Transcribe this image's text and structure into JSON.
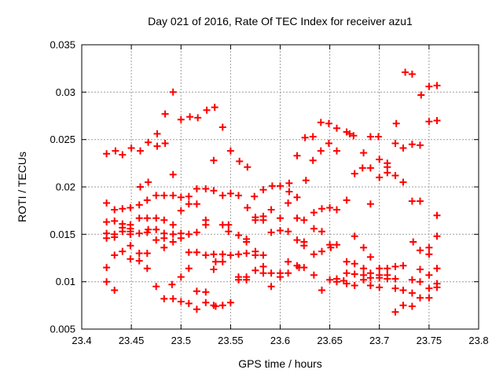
{
  "chart_data": {
    "type": "scatter",
    "title": "Day 021 of 2016, Rate Of TEC Index for receiver azu1",
    "xlabel": "GPS time / hours",
    "ylabel": "ROTI / TECUs",
    "xlim": [
      23.4,
      23.8
    ],
    "ylim": [
      0.005,
      0.035
    ],
    "xticks": [
      23.4,
      23.45,
      23.5,
      23.55,
      23.6,
      23.65,
      23.7,
      23.75,
      23.8
    ],
    "xtick_labels": [
      "23.4",
      "23.45",
      "23.5",
      "23.55",
      "23.6",
      "23.65",
      "23.7",
      "23.75",
      "23.8"
    ],
    "yticks": [
      0.005,
      0.01,
      0.015,
      0.02,
      0.025,
      0.03,
      0.035
    ],
    "ytick_labels": [
      "0.005",
      "0.01",
      "0.015",
      "0.02",
      "0.025",
      "0.03",
      "0.035"
    ],
    "grid": true,
    "legend": "none",
    "marker": "plus",
    "marker_color": "#ff0000",
    "grid_color": "#9e9e9e",
    "frame_color": "#000000",
    "series": [
      {
        "name": "ROTI",
        "points": [
          [
            23.425,
            0.0235
          ],
          [
            23.434,
            0.0238
          ],
          [
            23.441,
            0.0234
          ],
          [
            23.45,
            0.0241
          ],
          [
            23.459,
            0.0238
          ],
          [
            23.467,
            0.0247
          ],
          [
            23.476,
            0.0243
          ],
          [
            23.484,
            0.0246
          ],
          [
            23.476,
            0.0256
          ],
          [
            23.492,
            0.03
          ],
          [
            23.492,
            0.0213
          ],
          [
            23.484,
            0.0277
          ],
          [
            23.5,
            0.0271
          ],
          [
            23.509,
            0.0274
          ],
          [
            23.517,
            0.0273
          ],
          [
            23.526,
            0.0281
          ],
          [
            23.534,
            0.0284
          ],
          [
            23.533,
            0.0228
          ],
          [
            23.467,
            0.0205
          ],
          [
            23.459,
            0.02
          ],
          [
            23.516,
            0.0198
          ],
          [
            23.525,
            0.0198
          ],
          [
            23.533,
            0.0196
          ],
          [
            23.475,
            0.0191
          ],
          [
            23.483,
            0.0191
          ],
          [
            23.492,
            0.0191
          ],
          [
            23.5,
            0.0189
          ],
          [
            23.508,
            0.019
          ],
          [
            23.425,
            0.0183
          ],
          [
            23.458,
            0.0181
          ],
          [
            23.466,
            0.0186
          ],
          [
            23.508,
            0.0182
          ],
          [
            23.516,
            0.0182
          ],
          [
            23.433,
            0.0176
          ],
          [
            23.441,
            0.0177
          ],
          [
            23.449,
            0.0178
          ],
          [
            23.5,
            0.0175
          ],
          [
            23.458,
            0.0167
          ],
          [
            23.466,
            0.0167
          ],
          [
            23.475,
            0.0167
          ],
          [
            23.483,
            0.0165
          ],
          [
            23.525,
            0.0165
          ],
          [
            23.425,
            0.0163
          ],
          [
            23.433,
            0.0164
          ],
          [
            23.441,
            0.0161
          ],
          [
            23.449,
            0.016
          ],
          [
            23.492,
            0.016
          ],
          [
            23.525,
            0.016
          ],
          [
            23.441,
            0.0157
          ],
          [
            23.449,
            0.0156
          ],
          [
            23.467,
            0.0155
          ],
          [
            23.475,
            0.0155
          ],
          [
            23.441,
            0.0153
          ],
          [
            23.449,
            0.0153
          ],
          [
            23.425,
            0.0151
          ],
          [
            23.433,
            0.015
          ],
          [
            23.449,
            0.015
          ],
          [
            23.458,
            0.0151
          ],
          [
            23.466,
            0.0152
          ],
          [
            23.483,
            0.0151
          ],
          [
            23.492,
            0.015
          ],
          [
            23.5,
            0.0151
          ],
          [
            23.508,
            0.015
          ],
          [
            23.516,
            0.0152
          ],
          [
            23.425,
            0.0146
          ],
          [
            23.433,
            0.0147
          ],
          [
            23.475,
            0.0144
          ],
          [
            23.483,
            0.0146
          ],
          [
            23.492,
            0.0142
          ],
          [
            23.5,
            0.0146
          ],
          [
            23.449,
            0.0138
          ],
          [
            23.483,
            0.0136
          ],
          [
            23.441,
            0.0132
          ],
          [
            23.433,
            0.0128
          ],
          [
            23.449,
            0.0124
          ],
          [
            23.458,
            0.013
          ],
          [
            23.466,
            0.013
          ],
          [
            23.508,
            0.0131
          ],
          [
            23.516,
            0.0131
          ],
          [
            23.525,
            0.0128
          ],
          [
            23.533,
            0.0129
          ],
          [
            23.458,
            0.0122
          ],
          [
            23.425,
            0.0115
          ],
          [
            23.466,
            0.0114
          ],
          [
            23.508,
            0.0114
          ],
          [
            23.533,
            0.0113
          ],
          [
            23.5,
            0.0105
          ],
          [
            23.425,
            0.01
          ],
          [
            23.491,
            0.0097
          ],
          [
            23.433,
            0.0091
          ],
          [
            23.475,
            0.0095
          ],
          [
            23.516,
            0.009
          ],
          [
            23.525,
            0.0089
          ],
          [
            23.483,
            0.0082
          ],
          [
            23.492,
            0.0082
          ],
          [
            23.5,
            0.0079
          ],
          [
            23.508,
            0.0077
          ],
          [
            23.525,
            0.0078
          ],
          [
            23.533,
            0.0075
          ],
          [
            23.516,
            0.0071
          ],
          [
            23.542,
            0.0263
          ],
          [
            23.55,
            0.0238
          ],
          [
            23.559,
            0.0227
          ],
          [
            23.567,
            0.0221
          ],
          [
            23.617,
            0.0233
          ],
          [
            23.625,
            0.0252
          ],
          [
            23.633,
            0.0253
          ],
          [
            23.633,
            0.0228
          ],
          [
            23.641,
            0.0268
          ],
          [
            23.649,
            0.0267
          ],
          [
            23.649,
            0.0246
          ],
          [
            23.641,
            0.0238
          ],
          [
            23.657,
            0.0262
          ],
          [
            23.657,
            0.0238
          ],
          [
            23.667,
            0.0258
          ],
          [
            23.67,
            0.0256
          ],
          [
            23.626,
            0.0207
          ],
          [
            23.609,
            0.0204
          ],
          [
            23.592,
            0.0201
          ],
          [
            23.542,
            0.0191
          ],
          [
            23.55,
            0.0193
          ],
          [
            23.558,
            0.0191
          ],
          [
            23.574,
            0.019
          ],
          [
            23.583,
            0.0197
          ],
          [
            23.6,
            0.0201
          ],
          [
            23.609,
            0.0195
          ],
          [
            23.617,
            0.0189
          ],
          [
            23.667,
            0.0186
          ],
          [
            23.567,
            0.0178
          ],
          [
            23.591,
            0.0176
          ],
          [
            23.608,
            0.0183
          ],
          [
            23.575,
            0.0168
          ],
          [
            23.583,
            0.0169
          ],
          [
            23.575,
            0.0165
          ],
          [
            23.583,
            0.0165
          ],
          [
            23.6,
            0.0167
          ],
          [
            23.617,
            0.0167
          ],
          [
            23.624,
            0.0165
          ],
          [
            23.634,
            0.0173
          ],
          [
            23.642,
            0.0177
          ],
          [
            23.65,
            0.0178
          ],
          [
            23.657,
            0.0176
          ],
          [
            23.542,
            0.016
          ],
          [
            23.548,
            0.016
          ],
          [
            23.548,
            0.0153
          ],
          [
            23.558,
            0.0149
          ],
          [
            23.566,
            0.0145
          ],
          [
            23.566,
            0.0142
          ],
          [
            23.591,
            0.0152
          ],
          [
            23.6,
            0.0154
          ],
          [
            23.608,
            0.0153
          ],
          [
            23.634,
            0.0156
          ],
          [
            23.642,
            0.0153
          ],
          [
            23.617,
            0.0144
          ],
          [
            23.624,
            0.0142
          ],
          [
            23.624,
            0.0138
          ],
          [
            23.65,
            0.0139
          ],
          [
            23.651,
            0.0136
          ],
          [
            23.657,
            0.0139
          ],
          [
            23.634,
            0.0129
          ],
          [
            23.642,
            0.0132
          ],
          [
            23.542,
            0.0129
          ],
          [
            23.55,
            0.0128
          ],
          [
            23.558,
            0.0129
          ],
          [
            23.566,
            0.013
          ],
          [
            23.575,
            0.0132
          ],
          [
            23.575,
            0.0128
          ],
          [
            23.583,
            0.0128
          ],
          [
            23.542,
            0.0121
          ],
          [
            23.535,
            0.0121
          ],
          [
            23.608,
            0.0121
          ],
          [
            23.617,
            0.0117
          ],
          [
            23.619,
            0.0115
          ],
          [
            23.624,
            0.0115
          ],
          [
            23.667,
            0.0121
          ],
          [
            23.667,
            0.0109
          ],
          [
            23.583,
            0.0116
          ],
          [
            23.583,
            0.0109
          ],
          [
            23.591,
            0.0109
          ],
          [
            23.575,
            0.0112
          ],
          [
            23.6,
            0.0109
          ],
          [
            23.6,
            0.0105
          ],
          [
            23.608,
            0.0109
          ],
          [
            23.634,
            0.0107
          ],
          [
            23.558,
            0.0105
          ],
          [
            23.558,
            0.0102
          ],
          [
            23.566,
            0.0105
          ],
          [
            23.566,
            0.0102
          ],
          [
            23.591,
            0.0095
          ],
          [
            23.65,
            0.0102
          ],
          [
            23.657,
            0.0103
          ],
          [
            23.657,
            0.01
          ],
          [
            23.664,
            0.0101
          ],
          [
            23.667,
            0.0098
          ],
          [
            23.642,
            0.0091
          ],
          [
            23.55,
            0.0078
          ],
          [
            23.542,
            0.0075
          ],
          [
            23.535,
            0.0074
          ],
          [
            23.726,
            0.0321
          ],
          [
            23.733,
            0.0319
          ],
          [
            23.75,
            0.0306
          ],
          [
            23.758,
            0.0307
          ],
          [
            23.742,
            0.0297
          ],
          [
            23.717,
            0.0267
          ],
          [
            23.75,
            0.0269
          ],
          [
            23.758,
            0.027
          ],
          [
            23.674,
            0.0254
          ],
          [
            23.691,
            0.0253
          ],
          [
            23.699,
            0.0253
          ],
          [
            23.716,
            0.0246
          ],
          [
            23.724,
            0.0241
          ],
          [
            23.733,
            0.0245
          ],
          [
            23.741,
            0.0244
          ],
          [
            23.684,
            0.0236
          ],
          [
            23.7,
            0.0229
          ],
          [
            23.708,
            0.0225
          ],
          [
            23.708,
            0.0221
          ],
          [
            23.683,
            0.022
          ],
          [
            23.691,
            0.022
          ],
          [
            23.708,
            0.0215
          ],
          [
            23.675,
            0.0214
          ],
          [
            23.7,
            0.021
          ],
          [
            23.716,
            0.0212
          ],
          [
            23.724,
            0.0205
          ],
          [
            23.691,
            0.0182
          ],
          [
            23.733,
            0.0185
          ],
          [
            23.741,
            0.0185
          ],
          [
            23.758,
            0.017
          ],
          [
            23.675,
            0.0148
          ],
          [
            23.758,
            0.0148
          ],
          [
            23.734,
            0.0142
          ],
          [
            23.684,
            0.0136
          ],
          [
            23.741,
            0.0133
          ],
          [
            23.75,
            0.0136
          ],
          [
            23.75,
            0.0129
          ],
          [
            23.691,
            0.0126
          ],
          [
            23.675,
            0.0119
          ],
          [
            23.716,
            0.0116
          ],
          [
            23.724,
            0.0117
          ],
          [
            23.684,
            0.0114
          ],
          [
            23.7,
            0.0114
          ],
          [
            23.708,
            0.0114
          ],
          [
            23.741,
            0.0113
          ],
          [
            23.758,
            0.0114
          ],
          [
            23.675,
            0.0108
          ],
          [
            23.684,
            0.0107
          ],
          [
            23.691,
            0.0109
          ],
          [
            23.7,
            0.0107
          ],
          [
            23.708,
            0.0107
          ],
          [
            23.716,
            0.0103
          ],
          [
            23.684,
            0.0102
          ],
          [
            23.691,
            0.0104
          ],
          [
            23.7,
            0.0104
          ],
          [
            23.708,
            0.0103
          ],
          [
            23.733,
            0.0102
          ],
          [
            23.741,
            0.01
          ],
          [
            23.75,
            0.0107
          ],
          [
            23.758,
            0.0098
          ],
          [
            23.675,
            0.0096
          ],
          [
            23.691,
            0.0096
          ],
          [
            23.7,
            0.0094
          ],
          [
            23.716,
            0.0093
          ],
          [
            23.724,
            0.0091
          ],
          [
            23.733,
            0.0088
          ],
          [
            23.741,
            0.0083
          ],
          [
            23.75,
            0.0083
          ],
          [
            23.75,
            0.0093
          ],
          [
            23.758,
            0.0094
          ],
          [
            23.724,
            0.0075
          ],
          [
            23.733,
            0.0074
          ],
          [
            23.716,
            0.0068
          ]
        ]
      }
    ]
  }
}
